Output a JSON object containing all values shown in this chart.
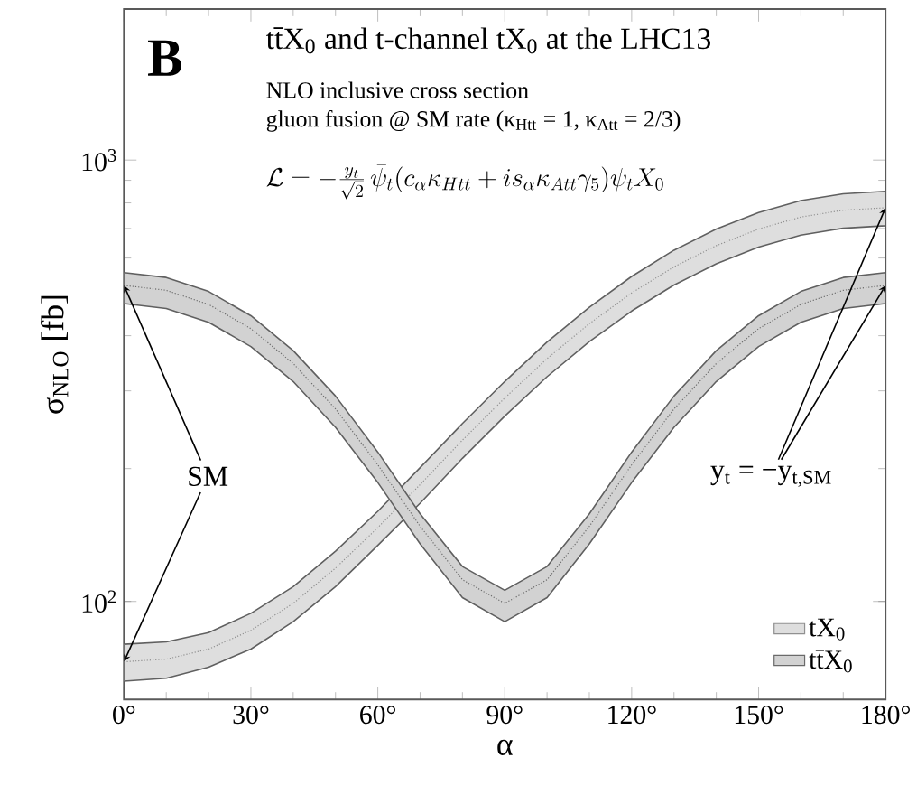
{
  "chart_data": {
    "type": "line",
    "title": "tt̄X$_{0}$   and   t-channel tX$_{0}$   at the LHC13",
    "subtitle": "NLO inclusive cross section",
    "xlabel": "α",
    "ylabel": "σ$_{NLO}$   [fb]",
    "annotations": [
      "B",
      "gluon fusion @ SM rate (κ$_{Htt}$ = 1, κ$_{Att}$ = 2/3)",
      "\\mathcal{L}=-\\frac{y_t}{\\sqrt{2}}\\,\\bar{\\psi}_t(c_\\alpha\\kappa_{Htt}+is_\\alpha\\kappa_{Att}\\gamma_5)\\psi_t X_0",
      {
        "text": "SM",
        "x": 0,
        "y": 520
      },
      {
        "text": "y$_{t}$ = −y$_{t,SM}$",
        "x": 180,
        "y": 780
      }
    ],
    "x": [
      0,
      10,
      20,
      30,
      40,
      50,
      60,
      70,
      80,
      90,
      100,
      110,
      120,
      130,
      140,
      150,
      160,
      170,
      180
    ],
    "series": [
      {
        "name": "tX$_{0}$",
        "color": "#909090",
        "values": [
          73,
          74,
          78,
          86,
          99,
          119,
          147,
          184,
          232,
          289,
          355,
          426,
          500,
          573,
          640,
          698,
          743,
          770,
          780
        ],
        "lower": [
          66,
          67,
          71,
          78,
          90,
          108,
          134,
          167,
          211,
          263,
          323,
          388,
          455,
          521,
          582,
          635,
          676,
          701,
          710
        ],
        "upper": [
          80,
          81,
          85,
          94,
          108,
          130,
          160,
          201,
          253,
          315,
          387,
          464,
          545,
          625,
          698,
          761,
          810,
          839,
          850
        ]
      },
      {
        "name": "tt̄X$_{0}$",
        "color": "#6a6a6a",
        "values": [
          520,
          507,
          471,
          415,
          346,
          273,
          204,
          148,
          112,
          99,
          112,
          148,
          204,
          273,
          346,
          415,
          471,
          507,
          520
        ],
        "lower": [
          473,
          461,
          429,
          378,
          315,
          248,
          186,
          135,
          102,
          90,
          102,
          135,
          186,
          248,
          315,
          378,
          429,
          461,
          473
        ],
        "upper": [
          556,
          542,
          504,
          444,
          370,
          292,
          218,
          158,
          120,
          106,
          120,
          158,
          218,
          292,
          370,
          444,
          504,
          542,
          556
        ]
      }
    ],
    "xlim": [
      0,
      180
    ],
    "ylim": [
      60,
      2200
    ],
    "log": "y",
    "xticks": [
      {
        "value": 0,
        "label": "0°"
      },
      {
        "value": 30,
        "label": "30°"
      },
      {
        "value": 60,
        "label": "60°"
      },
      {
        "value": 90,
        "label": "90°"
      },
      {
        "value": 120,
        "label": "120°"
      },
      {
        "value": 150,
        "label": "150°"
      },
      {
        "value": 180,
        "label": "180°"
      }
    ],
    "yticks": [
      {
        "value": 100,
        "label": "10$^{2}$"
      },
      {
        "value": 1000,
        "label": "10$^{3}$"
      }
    ],
    "legend": "bottom right",
    "line_style": "dotted",
    "grid": false
  }
}
